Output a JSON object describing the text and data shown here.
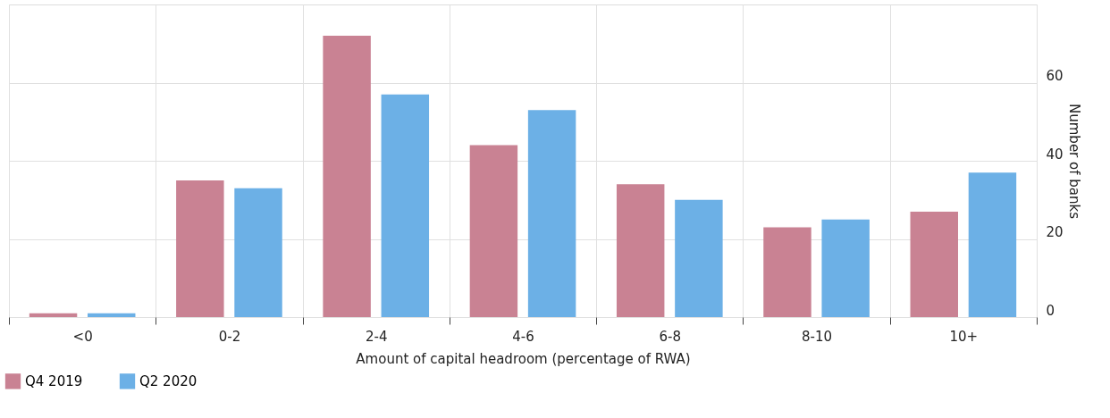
{
  "chart_data": {
    "type": "bar",
    "xlabel": "Amount of capital headroom (percentage of RWA)",
    "ylabel": "Number of banks",
    "categories": [
      "<0",
      "0-2",
      "2-4",
      "4-6",
      "6-8",
      "8-10",
      "10+"
    ],
    "series": [
      {
        "name": "Q4 2019",
        "color": "#c98293",
        "values": [
          1,
          35,
          72,
          44,
          34,
          23,
          27
        ]
      },
      {
        "name": "Q2 2020",
        "color": "#6cb0e6",
        "values": [
          1,
          33,
          57,
          53,
          30,
          25,
          37
        ]
      }
    ],
    "ylim": [
      0,
      80
    ],
    "yticks": [
      0,
      20,
      40,
      60
    ],
    "grid": true,
    "legend": "bottom left"
  }
}
